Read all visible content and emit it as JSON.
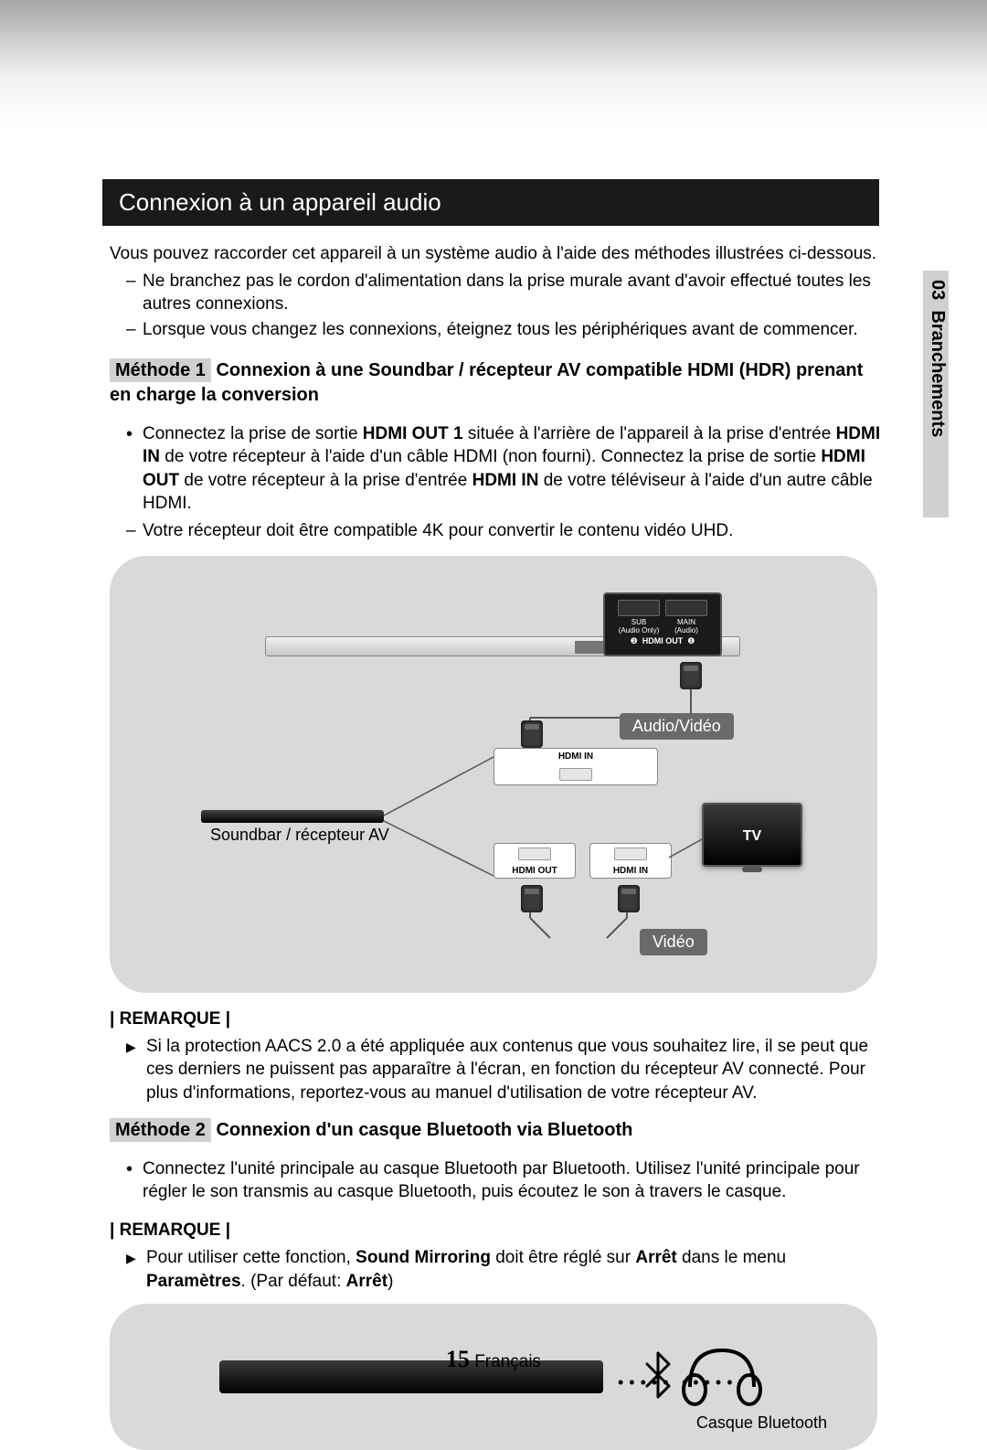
{
  "colors": {
    "header_bg": "#1a1a1a",
    "header_text": "#ffffff",
    "diagram_bg": "#d9d9d9",
    "label_bg": "#6a6a6a",
    "badge_bg": "#d0d0d0",
    "side_tab_bg": "#d0d0d0"
  },
  "fontsizes": {
    "header": 26,
    "body": 19,
    "diagram_label": 18,
    "page_number": 26
  },
  "side_tab": {
    "chapter_number": "03",
    "chapter_title": "Branchements"
  },
  "header": {
    "title": "Connexion à un appareil audio"
  },
  "intro": {
    "text": "Vous pouvez raccorder cet appareil à un système audio à l'aide des méthodes illustrées ci-dessous.",
    "dashes": [
      "Ne branchez pas le cordon d'alimentation dans la prise murale avant d'avoir effectué toutes les autres connexions.",
      "Lorsque vous changez les connexions, éteignez tous les périphériques avant de commencer."
    ]
  },
  "method1": {
    "badge": "Méthode 1",
    "title_rest": " Connexion à une Soundbar / récepteur AV compatible HDMI (HDR) prenant en charge la conversion",
    "bullets_html": [
      "Connectez la prise de sortie <b>HDMI OUT 1</b> située à l'arrière de l'appareil à la prise d'entrée <b>HDMI IN</b> de votre récepteur à l'aide d'un câble HDMI (non fourni). Connectez la prise de sortie <b>HDMI OUT</b> de votre récepteur à la prise d'entrée <b>HDMI IN</b> de votre téléviseur à l'aide d'un autre câble HDMI."
    ],
    "dashes": [
      "Votre récepteur doit être compatible 4K pour convertir le contenu vidéo UHD."
    ]
  },
  "diagram1": {
    "label_audio_video": "Audio/Vidéo",
    "label_video": "Vidéo",
    "label_tv": "TV",
    "label_soundbar": "Soundbar / récepteur AV",
    "port_hdmi_in": "HDMI IN",
    "port_hdmi_out": "HDMI OUT",
    "port_sub": "SUB",
    "port_sub_sub": "(Audio Only)",
    "port_main": "MAIN",
    "port_main_sub": "(Audio)",
    "port_hdmi_out_small": "HDMI OUT",
    "port_num_2": "❷",
    "port_num_1": "❶"
  },
  "remark1": {
    "label": "| REMARQUE |",
    "items": [
      "Si la protection AACS 2.0 a été appliquée aux contenus que vous souhaitez lire, il se peut que ces derniers ne puissent pas apparaître à l'écran, en fonction du récepteur AV connecté. Pour plus d'informations, reportez-vous au manuel d'utilisation de votre récepteur AV."
    ]
  },
  "method2": {
    "badge": "Méthode 2",
    "title_rest": " Connexion d'un casque Bluetooth via Bluetooth",
    "bullets": [
      "Connectez l'unité principale au casque Bluetooth par Bluetooth. Utilisez l'unité principale pour régler le son transmis au casque Bluetooth, puis écoutez le son à travers le casque."
    ]
  },
  "remark2": {
    "label": "| REMARQUE |",
    "items_html": [
      "Pour utiliser cette fonction, <b>Sound Mirroring</b> doit être réglé sur <b>Arrêt</b> dans le menu <b>Paramètres</b>. (Par défaut: <b>Arrêt</b>)"
    ]
  },
  "diagram2": {
    "label_headphones": "Casque Bluetooth"
  },
  "footer": {
    "page_number": "15",
    "language": "Français"
  }
}
